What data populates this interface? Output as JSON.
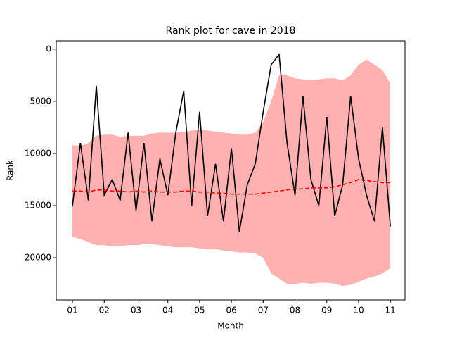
{
  "chart_data": {
    "type": "line",
    "title": "Rank plot for cave in 2018",
    "x_label": "Month",
    "y_label": "Rank",
    "x": [
      1,
      1.25,
      1.5,
      1.75,
      2,
      2.25,
      2.5,
      2.75,
      3,
      3.25,
      3.5,
      3.75,
      4,
      4.25,
      4.5,
      4.75,
      5,
      5.25,
      5.5,
      5.75,
      6,
      6.25,
      6.5,
      6.75,
      7,
      7.25,
      7.5,
      7.75,
      8,
      8.25,
      8.5,
      8.75,
      9,
      9.25,
      9.5,
      9.75,
      10,
      10.25,
      10.5,
      10.75,
      11
    ],
    "band": {
      "color": "#ffb1b1",
      "lower": [
        9200,
        9300,
        9000,
        8300,
        8200,
        8200,
        8400,
        8300,
        8300,
        8300,
        8100,
        8000,
        8000,
        8000,
        7900,
        7800,
        7700,
        7800,
        7900,
        8000,
        8100,
        8200,
        8200,
        8000,
        7000,
        5000,
        2500,
        2500,
        2800,
        2900,
        3000,
        2900,
        2800,
        2800,
        3000,
        2500,
        1500,
        1000,
        1500,
        2000,
        3300
      ],
      "upper": [
        18000,
        18200,
        18500,
        18800,
        18800,
        18900,
        18900,
        18800,
        18800,
        18700,
        18700,
        18800,
        18900,
        19000,
        19000,
        19000,
        19100,
        19200,
        19200,
        19300,
        19400,
        19500,
        19500,
        19600,
        20000,
        21500,
        22000,
        22500,
        22500,
        22400,
        22500,
        22400,
        22400,
        22500,
        22700,
        22600,
        22300,
        22000,
        21800,
        21500,
        21000
      ]
    },
    "series": [
      {
        "color": "#000000",
        "dashed": false,
        "values": [
          15000,
          9000,
          14500,
          3500,
          14000,
          12500,
          14500,
          8000,
          15500,
          9000,
          16500,
          10500,
          14000,
          8000,
          4000,
          15000,
          6000,
          16000,
          11000,
          16500,
          9500,
          17500,
          13000,
          11000,
          6000,
          1500,
          500,
          9000,
          14000,
          4500,
          12500,
          15000,
          6500,
          16000,
          13000,
          4500,
          10500,
          14000,
          16500,
          7500,
          17000
        ]
      },
      {
        "color": "#ff0000",
        "dashed": true,
        "values": [
          13600,
          13600,
          13700,
          13500,
          13500,
          13600,
          13600,
          13700,
          13600,
          13700,
          13600,
          13700,
          13700,
          13700,
          13600,
          13600,
          13700,
          13700,
          13800,
          13800,
          13900,
          13900,
          13900,
          13900,
          13800,
          13700,
          13600,
          13500,
          13400,
          13400,
          13300,
          13300,
          13300,
          13200,
          13000,
          12800,
          12500,
          12600,
          12700,
          12800,
          12800
        ]
      }
    ],
    "xlim": [
      0.49,
      11.46
    ],
    "xticks": [
      {
        "value": 1,
        "label": "01"
      },
      {
        "value": 2,
        "label": "02"
      },
      {
        "value": 3,
        "label": "03"
      },
      {
        "value": 4,
        "label": "04"
      },
      {
        "value": 5,
        "label": "05"
      },
      {
        "value": 6,
        "label": "06"
      },
      {
        "value": 7,
        "label": "07"
      },
      {
        "value": 8,
        "label": "08"
      },
      {
        "value": 9,
        "label": "09"
      },
      {
        "value": 10,
        "label": "10"
      },
      {
        "value": 11,
        "label": "11"
      }
    ],
    "ylim": [
      24050,
      -800
    ],
    "yticks": [
      0,
      5000,
      10000,
      15000,
      20000
    ]
  }
}
